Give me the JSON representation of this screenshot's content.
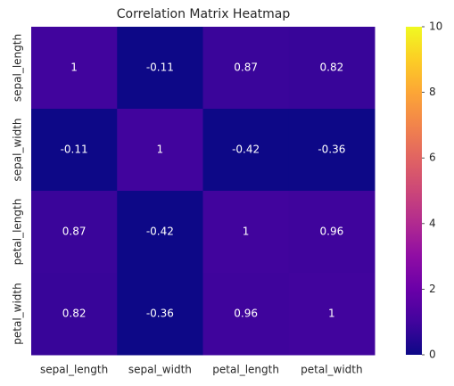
{
  "chart_data": {
    "type": "heatmap",
    "title": "Correlation Matrix Heatmap",
    "x": [
      "sepal_length",
      "sepal_width",
      "petal_length",
      "petal_width"
    ],
    "y": [
      "sepal_length",
      "sepal_width",
      "petal_length",
      "petal_width"
    ],
    "values": [
      [
        1,
        -0.11,
        0.87,
        0.82
      ],
      [
        -0.11,
        1,
        -0.42,
        -0.36
      ],
      [
        0.87,
        -0.42,
        1,
        0.96
      ],
      [
        0.82,
        -0.36,
        0.96,
        1
      ]
    ],
    "colormap": "plasma",
    "clim": [
      0,
      10
    ],
    "cticks": [
      0,
      2,
      4,
      6,
      8,
      10
    ],
    "annotate": true
  }
}
